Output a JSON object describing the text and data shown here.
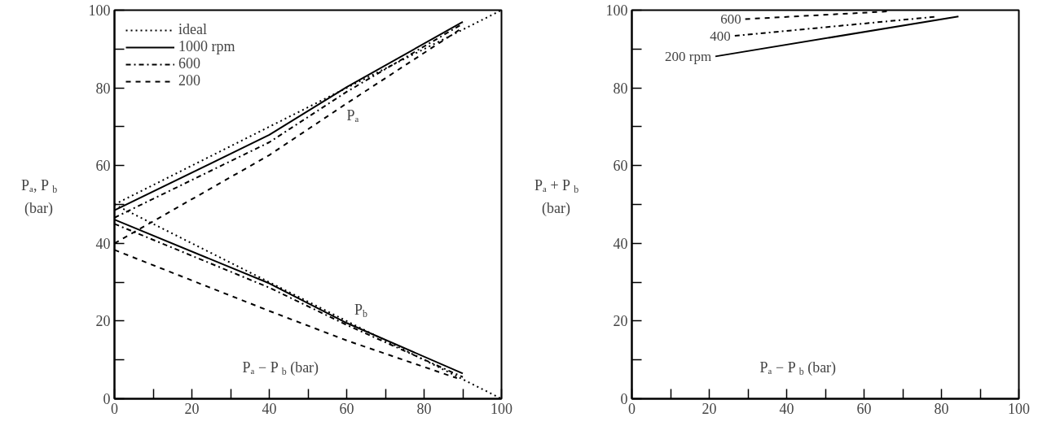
{
  "chart_data": [
    {
      "type": "line",
      "xlabel": "Pₐ − P$_{b}$ (bar)",
      "ylabel": "Pₐ, P$_{b}$ (bar)",
      "xlim": [
        0,
        100
      ],
      "ylim": [
        0,
        100
      ],
      "xticks": [
        0,
        {
          "value": 10,
          "label": null
        },
        20,
        {
          "value": 30,
          "label": null
        },
        40,
        {
          "value": 50,
          "label": null
        },
        60,
        {
          "value": 70,
          "label": null
        },
        80,
        {
          "value": 90,
          "label": null
        },
        100
      ],
      "yticks": [
        0,
        {
          "value": 10,
          "label": null
        },
        20,
        {
          "value": 30,
          "label": null
        },
        40,
        {
          "value": 50,
          "label": null
        },
        60,
        {
          "value": 70,
          "label": null
        },
        80,
        {
          "value": 90,
          "label": null
        },
        100
      ],
      "grid": false,
      "legend": "top left",
      "annotations": [
        "Pₐ",
        "P$_{b}$"
      ],
      "series": [
        {
          "name": "ideal",
          "color": "#000000",
          "line_style": "dotted",
          "x": [
            0,
            100
          ],
          "values": [
            50,
            100
          ]
        },
        {
          "color": "#000000",
          "line_style": "dotted",
          "x": [
            0,
            100
          ],
          "values": [
            50,
            0
          ]
        },
        {
          "name": "1000 rpm",
          "color": "#000000",
          "line_style": "solid",
          "x": [
            0,
            40,
            60,
            90
          ],
          "values": [
            48.5,
            67.9,
            80.2,
            97
          ]
        },
        {
          "color": "#000000",
          "line_style": "solid",
          "x": [
            0,
            40,
            60,
            90
          ],
          "values": [
            46.1,
            29.7,
            19.5,
            6.5
          ]
        },
        {
          "name": "600",
          "color": "#000000",
          "line_style": "dashdot",
          "x": [
            0,
            40,
            60,
            90
          ],
          "values": [
            46.6,
            66,
            79,
            96.5
          ]
        },
        {
          "color": "#000000",
          "line_style": "dashdot",
          "x": [
            0,
            40,
            60,
            90
          ],
          "values": [
            45,
            28.6,
            19,
            5.6
          ]
        },
        {
          "name": "200",
          "color": "#000000",
          "line_style": "dashed",
          "x": [
            0,
            40,
            60,
            90
          ],
          "values": [
            40,
            62.7,
            76,
            95.5
          ]
        },
        {
          "color": "#000000",
          "line_style": "dashed",
          "x": [
            0,
            40,
            60,
            88.5
          ],
          "values": [
            38.3,
            22.6,
            15,
            5.3
          ]
        }
      ]
    },
    {
      "type": "line",
      "xlabel": "Pₐ − P$_{b}$ (bar)",
      "ylabel": "Pₐ + P$_{b}$ (bar)",
      "xlim": [
        0,
        100
      ],
      "ylim": [
        0,
        100
      ],
      "xticks": [
        0,
        {
          "value": 10,
          "label": null
        },
        20,
        {
          "value": 30,
          "label": null
        },
        40,
        {
          "value": 50,
          "label": null
        },
        60,
        {
          "value": 70,
          "label": null
        },
        80,
        {
          "value": 90,
          "label": null
        },
        100
      ],
      "yticks": [
        0,
        {
          "value": 10,
          "label": null
        },
        20,
        {
          "value": 30,
          "label": null
        },
        40,
        {
          "value": 50,
          "label": null
        },
        60,
        {
          "value": 70,
          "label": null
        },
        80,
        {
          "value": 90,
          "label": null
        },
        100
      ],
      "grid": false,
      "series": [
        {
          "name": "600",
          "color": "#000000",
          "line_style": "dashed",
          "x": [
            29.3,
            66.6
          ],
          "values": [
            97.7,
            99.7
          ]
        },
        {
          "name": "400",
          "color": "#000000",
          "line_style": "dashdot",
          "x": [
            26.6,
            78.4
          ],
          "values": [
            93.4,
            98.3
          ]
        },
        {
          "name": "200 rpm",
          "color": "#000000",
          "line_style": "solid",
          "x": [
            21.6,
            84.4
          ],
          "values": [
            88.1,
            98.4
          ]
        }
      ]
    }
  ]
}
